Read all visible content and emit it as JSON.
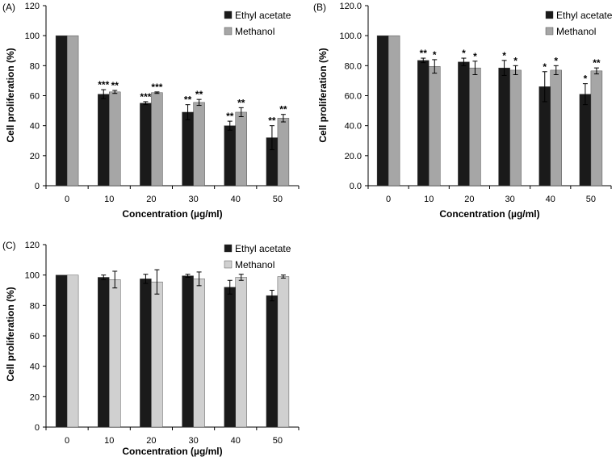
{
  "colors": {
    "ethyl": "#1a1a1a",
    "methanol_ab": "#a6a6a6",
    "methanol_c": "#d0d0d0",
    "axis": "#000000"
  },
  "chart_data": [
    {
      "panel_label": "(A)",
      "type": "bar",
      "categories": [
        "0",
        "10",
        "20",
        "30",
        "40",
        "50"
      ],
      "xlabel": "Concentration (µg/ml)",
      "ylabel": "Cell proliferation (%)",
      "ylim": [
        0,
        120
      ],
      "yticks": [
        "0",
        "20",
        "40",
        "60",
        "80",
        "100",
        "120"
      ],
      "legend_position": "top-right",
      "series": [
        {
          "name": "Ethyl acetate",
          "values": [
            100,
            61,
            55,
            49,
            40,
            32
          ],
          "errors": [
            0,
            3,
            1,
            5,
            3,
            8
          ],
          "marks": [
            "",
            "***",
            "***",
            "**",
            "**",
            "**"
          ]
        },
        {
          "name": "Methanol",
          "values": [
            100,
            62.5,
            62,
            55.5,
            49,
            45
          ],
          "errors": [
            0,
            1,
            0.5,
            2,
            3,
            2.5
          ],
          "marks": [
            "",
            "**",
            "***",
            "**",
            "**",
            "**"
          ]
        }
      ]
    },
    {
      "panel_label": "(B)",
      "type": "bar",
      "categories": [
        "0",
        "10",
        "20",
        "30",
        "40",
        "50"
      ],
      "xlabel": "Concentration (µg/ml)",
      "ylabel": "Cell proliferation (%)",
      "ylim": [
        0,
        120
      ],
      "yticks": [
        "0.0",
        "20.0",
        "40.0",
        "60.0",
        "80.0",
        "100.0",
        "120.0"
      ],
      "legend_position": "top-right",
      "series": [
        {
          "name": "Ethyl acetate",
          "values": [
            100,
            83.5,
            82.5,
            78.5,
            66,
            61
          ],
          "errors": [
            0,
            1.5,
            2.5,
            5,
            10,
            7
          ],
          "marks": [
            "",
            "**",
            "*",
            "*",
            "*",
            "*"
          ]
        },
        {
          "name": "Methanol",
          "values": [
            100,
            79.5,
            78.5,
            77,
            77,
            76.5
          ],
          "errors": [
            0,
            4.5,
            4.5,
            3,
            3,
            2
          ],
          "marks": [
            "",
            "*",
            "*",
            "*",
            "*",
            "**"
          ]
        }
      ]
    },
    {
      "panel_label": "(C)",
      "type": "bar",
      "categories": [
        "0",
        "10",
        "20",
        "30",
        "40",
        "50"
      ],
      "xlabel": "Concentration (µg/ml)",
      "ylabel": "Cell proliferation (%)",
      "ylim": [
        0,
        120
      ],
      "yticks": [
        "0",
        "20",
        "40",
        "60",
        "80",
        "100",
        "120"
      ],
      "legend_position": "top-right",
      "series": [
        {
          "name": "Ethyl acetate",
          "values": [
            100,
            98.5,
            97.5,
            99.5,
            92,
            86.5
          ],
          "errors": [
            0,
            1.5,
            3,
            1,
            4.5,
            3.5
          ],
          "marks": [
            "",
            "",
            "",
            "",
            "",
            ""
          ]
        },
        {
          "name": "Methanol",
          "values": [
            100,
            97,
            95.5,
            97.5,
            98.5,
            99
          ],
          "errors": [
            0,
            5.5,
            8,
            4.5,
            2,
            1
          ],
          "marks": [
            "",
            "",
            "",
            "",
            "",
            ""
          ]
        }
      ]
    }
  ]
}
